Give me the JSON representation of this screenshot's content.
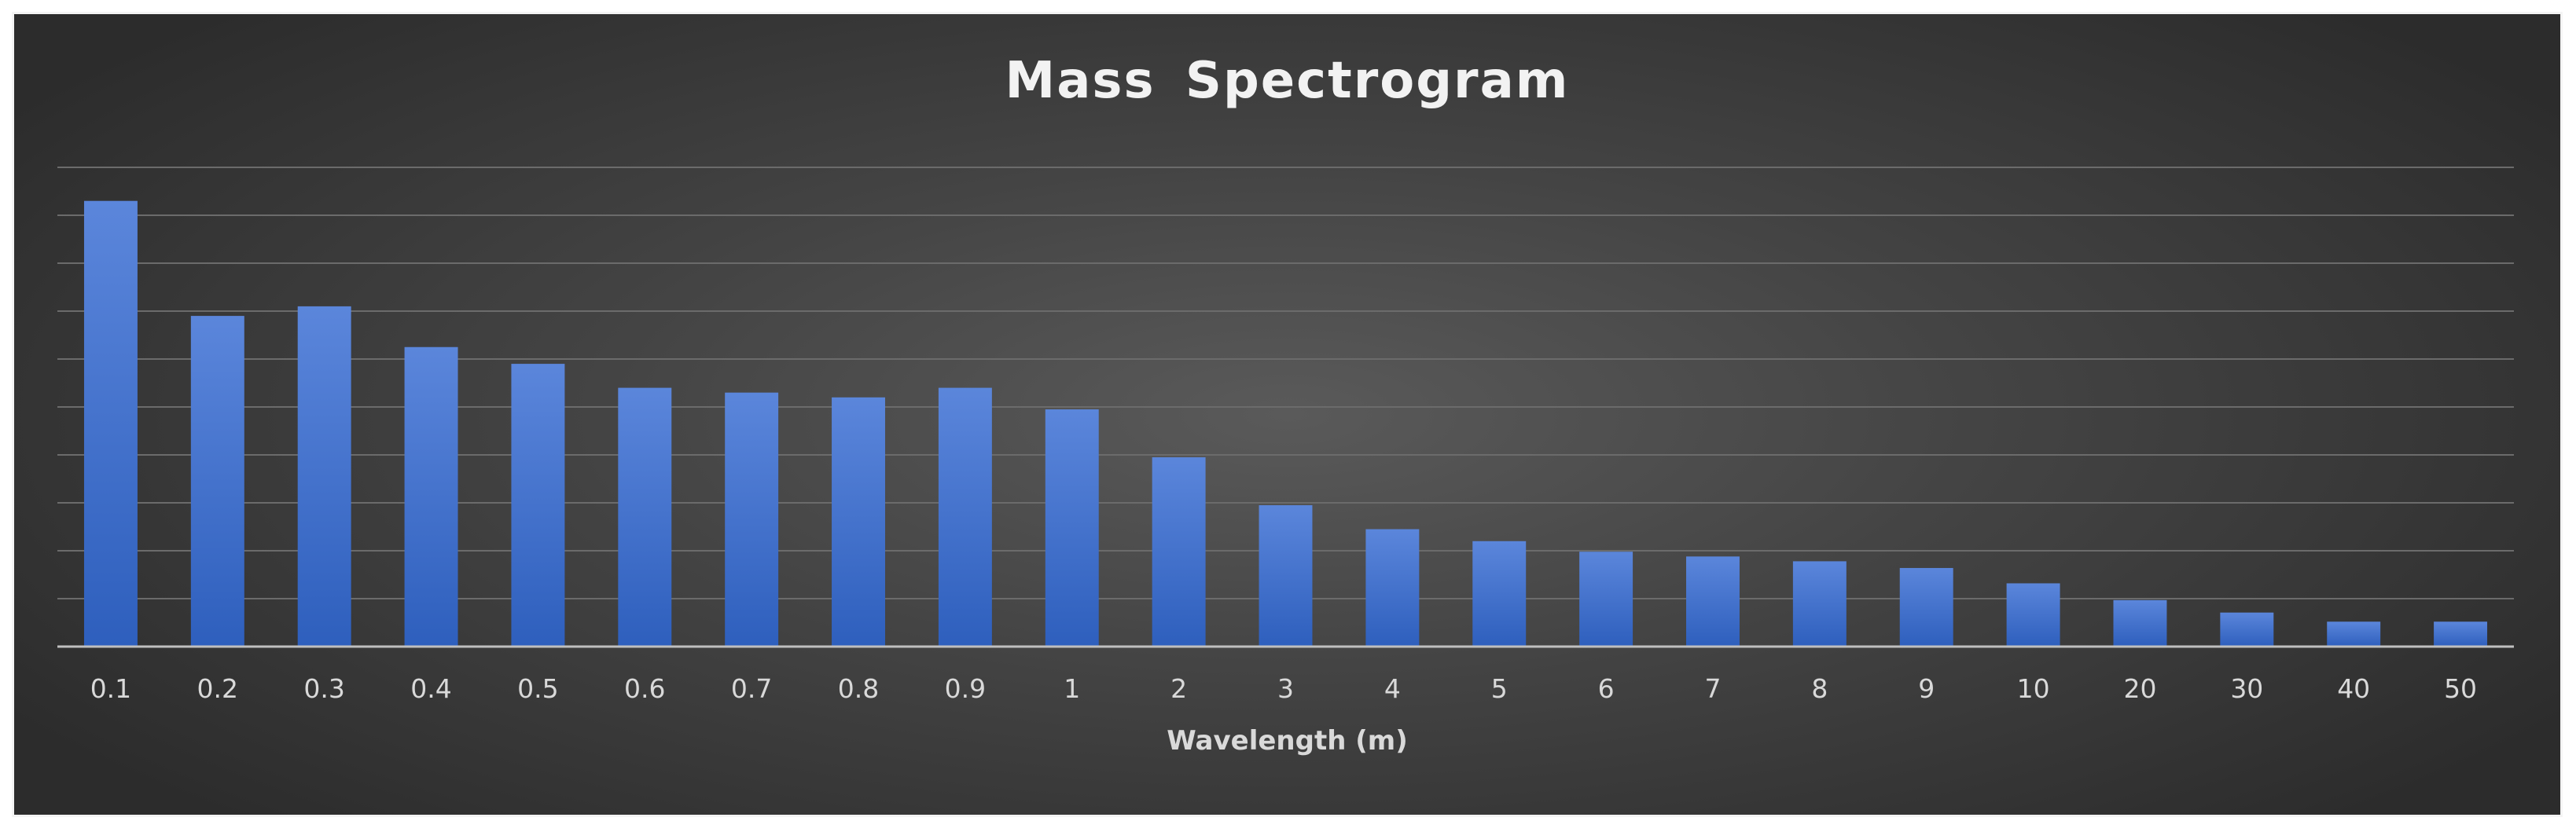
{
  "chart_data": {
    "type": "bar",
    "title": "Mass  Spectrogram",
    "xlabel": "Wavelength (m)",
    "ylabel": "",
    "categories": [
      "0.1",
      "0.2",
      "0.3",
      "0.4",
      "0.5",
      "0.6",
      "0.7",
      "0.8",
      "0.9",
      "1",
      "2",
      "3",
      "4",
      "5",
      "6",
      "7",
      "8",
      "9",
      "10",
      "20",
      "30",
      "40",
      "50"
    ],
    "values": [
      9.3,
      6.9,
      7.1,
      6.25,
      5.9,
      5.4,
      5.3,
      5.2,
      5.4,
      4.95,
      3.95,
      2.95,
      2.45,
      2.2,
      1.98,
      1.88,
      1.78,
      1.64,
      1.32,
      0.97,
      0.71,
      0.52,
      0.52
    ],
    "ylim": [
      0,
      10
    ],
    "y_ticks_shown": false,
    "grid": true,
    "gridline_count": 10,
    "legend": "none",
    "colors": {
      "bar_top": "#5b86db",
      "bar_bottom": "#2e5fbd",
      "background_center": "#5a5a5a",
      "background_edge": "#2c2c2c",
      "gridline": "#6b6b6b",
      "axis": "#bfbfbf",
      "text": "#d9d9d9",
      "title": "#f2f2f2"
    }
  }
}
